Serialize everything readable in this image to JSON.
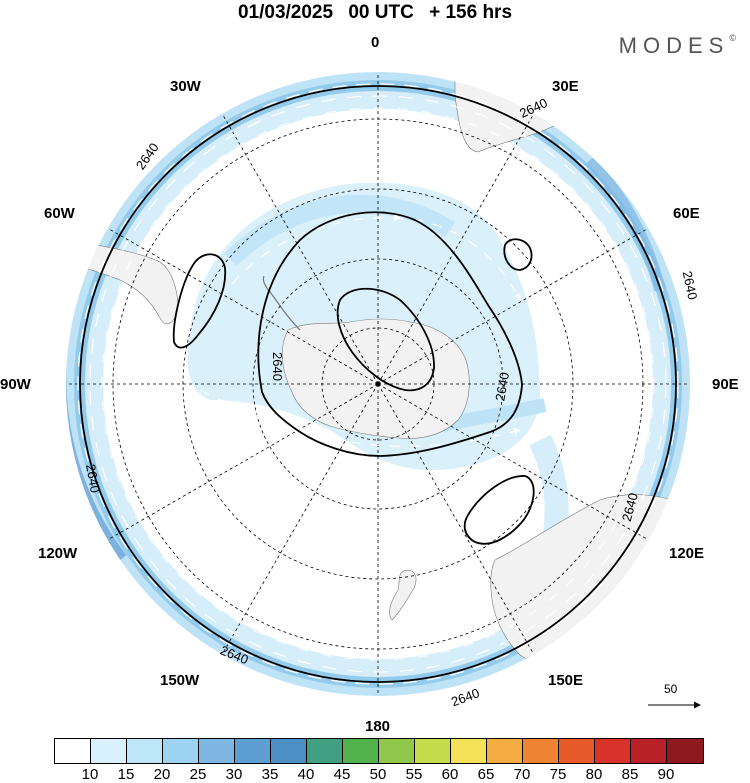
{
  "header": {
    "date": "01/03/2025",
    "time": "00 UTC",
    "lead": "+ 156 hrs"
  },
  "brand": {
    "name": "MODES",
    "mark": "©"
  },
  "map": {
    "projection": "south-polar-stereographic",
    "longitude_labels": [
      "0",
      "30E",
      "60E",
      "90E",
      "120E",
      "150E",
      "180",
      "150W",
      "120W",
      "90W",
      "60W",
      "30W"
    ],
    "contour_label": "2640",
    "wind_reference": {
      "value": "50"
    }
  },
  "colorbar": {
    "ticks": [
      "10",
      "15",
      "20",
      "25",
      "30",
      "35",
      "40",
      "45",
      "50",
      "55",
      "60",
      "65",
      "70",
      "75",
      "80",
      "85",
      "90"
    ],
    "colors": [
      "#ffffff",
      "#d9f1fc",
      "#bde6f8",
      "#9dd2f1",
      "#7eb8e2",
      "#5e9fd2",
      "#4c8fc4",
      "#41a082",
      "#52b34c",
      "#8fc84a",
      "#c5dc4c",
      "#f5e05a",
      "#f3ab42",
      "#ee8433",
      "#e75b2b",
      "#d8322b",
      "#b92027",
      "#8e1a1e"
    ]
  }
}
